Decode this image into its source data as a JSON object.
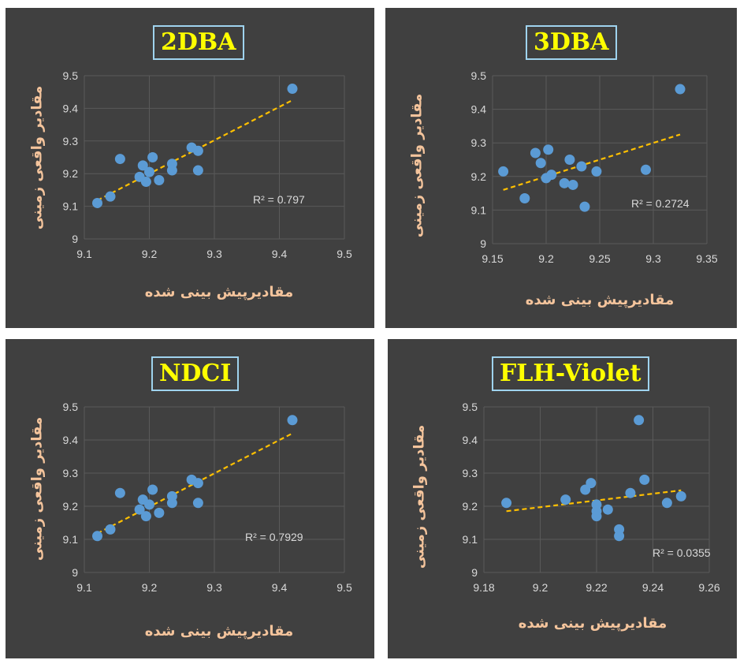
{
  "chart_data": [
    {
      "type": "scatter",
      "title": "2DBA",
      "xlabel": "مقادیرپیش بینی شده",
      "ylabel": "مقادیر واقعی زمینی",
      "xlim": [
        9.1,
        9.5
      ],
      "ylim": [
        9,
        9.5
      ],
      "xticks": [
        "9.1",
        "9.2",
        "9.3",
        "9.4",
        "9.5"
      ],
      "yticks": [
        "9",
        "9.1",
        "9.2",
        "9.3",
        "9.4",
        "9.5"
      ],
      "grid": true,
      "trendline": {
        "x": [
          9.12,
          9.42
        ],
        "y": [
          9.118,
          9.425
        ]
      },
      "r2_label": "R² = 0.797",
      "points": [
        {
          "x": 9.12,
          "y": 9.11
        },
        {
          "x": 9.14,
          "y": 9.13
        },
        {
          "x": 9.155,
          "y": 9.245
        },
        {
          "x": 9.185,
          "y": 9.19
        },
        {
          "x": 9.19,
          "y": 9.225
        },
        {
          "x": 9.195,
          "y": 9.175
        },
        {
          "x": 9.2,
          "y": 9.205
        },
        {
          "x": 9.205,
          "y": 9.25
        },
        {
          "x": 9.215,
          "y": 9.18
        },
        {
          "x": 9.235,
          "y": 9.23
        },
        {
          "x": 9.235,
          "y": 9.21
        },
        {
          "x": 9.265,
          "y": 9.28
        },
        {
          "x": 9.275,
          "y": 9.27
        },
        {
          "x": 9.275,
          "y": 9.21
        },
        {
          "x": 9.42,
          "y": 9.46
        }
      ]
    },
    {
      "type": "scatter",
      "title": "3DBA",
      "xlabel": "مقادیرپیش بینی شده",
      "ylabel": "مقادیر واقعی زمینی",
      "xlim": [
        9.15,
        9.35
      ],
      "ylim": [
        9,
        9.5
      ],
      "xticks": [
        "9.15",
        "9.2",
        "9.25",
        "9.3",
        "9.35"
      ],
      "yticks": [
        "9",
        "9.1",
        "9.2",
        "9.3",
        "9.4",
        "9.5"
      ],
      "grid": true,
      "trendline": {
        "x": [
          9.16,
          9.325
        ],
        "y": [
          9.16,
          9.325
        ]
      },
      "r2_label": "R² = 0.2724",
      "points": [
        {
          "x": 9.16,
          "y": 9.215
        },
        {
          "x": 9.18,
          "y": 9.135
        },
        {
          "x": 9.19,
          "y": 9.27
        },
        {
          "x": 9.195,
          "y": 9.24
        },
        {
          "x": 9.2,
          "y": 9.195
        },
        {
          "x": 9.202,
          "y": 9.28
        },
        {
          "x": 9.205,
          "y": 9.205
        },
        {
          "x": 9.217,
          "y": 9.18
        },
        {
          "x": 9.222,
          "y": 9.25
        },
        {
          "x": 9.225,
          "y": 9.175
        },
        {
          "x": 9.233,
          "y": 9.23
        },
        {
          "x": 9.236,
          "y": 9.11
        },
        {
          "x": 9.247,
          "y": 9.215
        },
        {
          "x": 9.293,
          "y": 9.22
        },
        {
          "x": 9.325,
          "y": 9.46
        }
      ]
    },
    {
      "type": "scatter",
      "title": "NDCI",
      "xlabel": "مقادیرپیش بینی شده",
      "ylabel": "مقادیر واقعی زمینی",
      "xlim": [
        9.1,
        9.5
      ],
      "ylim": [
        9,
        9.5
      ],
      "xticks": [
        "9.1",
        "9.2",
        "9.3",
        "9.4",
        "9.5"
      ],
      "yticks": [
        "9",
        "9.1",
        "9.2",
        "9.3",
        "9.4",
        "9.5"
      ],
      "grid": true,
      "trendline": {
        "x": [
          9.12,
          9.42
        ],
        "y": [
          9.118,
          9.42
        ]
      },
      "r2_label": "R² = 0.7929",
      "points": [
        {
          "x": 9.12,
          "y": 9.11
        },
        {
          "x": 9.14,
          "y": 9.13
        },
        {
          "x": 9.155,
          "y": 9.24
        },
        {
          "x": 9.185,
          "y": 9.19
        },
        {
          "x": 9.19,
          "y": 9.22
        },
        {
          "x": 9.195,
          "y": 9.17
        },
        {
          "x": 9.2,
          "y": 9.205
        },
        {
          "x": 9.205,
          "y": 9.25
        },
        {
          "x": 9.215,
          "y": 9.18
        },
        {
          "x": 9.235,
          "y": 9.23
        },
        {
          "x": 9.235,
          "y": 9.21
        },
        {
          "x": 9.265,
          "y": 9.28
        },
        {
          "x": 9.275,
          "y": 9.27
        },
        {
          "x": 9.275,
          "y": 9.21
        },
        {
          "x": 9.42,
          "y": 9.46
        }
      ]
    },
    {
      "type": "scatter",
      "title": "FLH-Violet",
      "xlabel": "مقادیرپیش بینی شده",
      "ylabel": "مقادیر واقعی زمینی",
      "xlim": [
        9.18,
        9.26
      ],
      "ylim": [
        9,
        9.5
      ],
      "xticks": [
        "9.18",
        "9.2",
        "9.22",
        "9.24",
        "9.26"
      ],
      "yticks": [
        "9",
        "9.1",
        "9.2",
        "9.3",
        "9.4",
        "9.5"
      ],
      "grid": true,
      "trendline": {
        "x": [
          9.188,
          9.25
        ],
        "y": [
          9.185,
          9.248
        ]
      },
      "r2_label": "R² = 0.0355",
      "points": [
        {
          "x": 9.188,
          "y": 9.21
        },
        {
          "x": 9.209,
          "y": 9.22
        },
        {
          "x": 9.216,
          "y": 9.25
        },
        {
          "x": 9.218,
          "y": 9.27
        },
        {
          "x": 9.22,
          "y": 9.205
        },
        {
          "x": 9.22,
          "y": 9.185
        },
        {
          "x": 9.22,
          "y": 9.17
        },
        {
          "x": 9.224,
          "y": 9.19
        },
        {
          "x": 9.228,
          "y": 9.13
        },
        {
          "x": 9.228,
          "y": 9.11
        },
        {
          "x": 9.232,
          "y": 9.24
        },
        {
          "x": 9.235,
          "y": 9.46
        },
        {
          "x": 9.237,
          "y": 9.28
        },
        {
          "x": 9.245,
          "y": 9.21
        },
        {
          "x": 9.25,
          "y": 9.23
        }
      ]
    }
  ],
  "colors": {
    "panel": "#404040",
    "grid": "#5a5a5a",
    "point": "#5b9bd5",
    "trend": "#ffc000",
    "title": "#ffff00",
    "title_border": "#9fd3ee",
    "label": "#f4c49c",
    "tick": "#d9d9d9"
  }
}
